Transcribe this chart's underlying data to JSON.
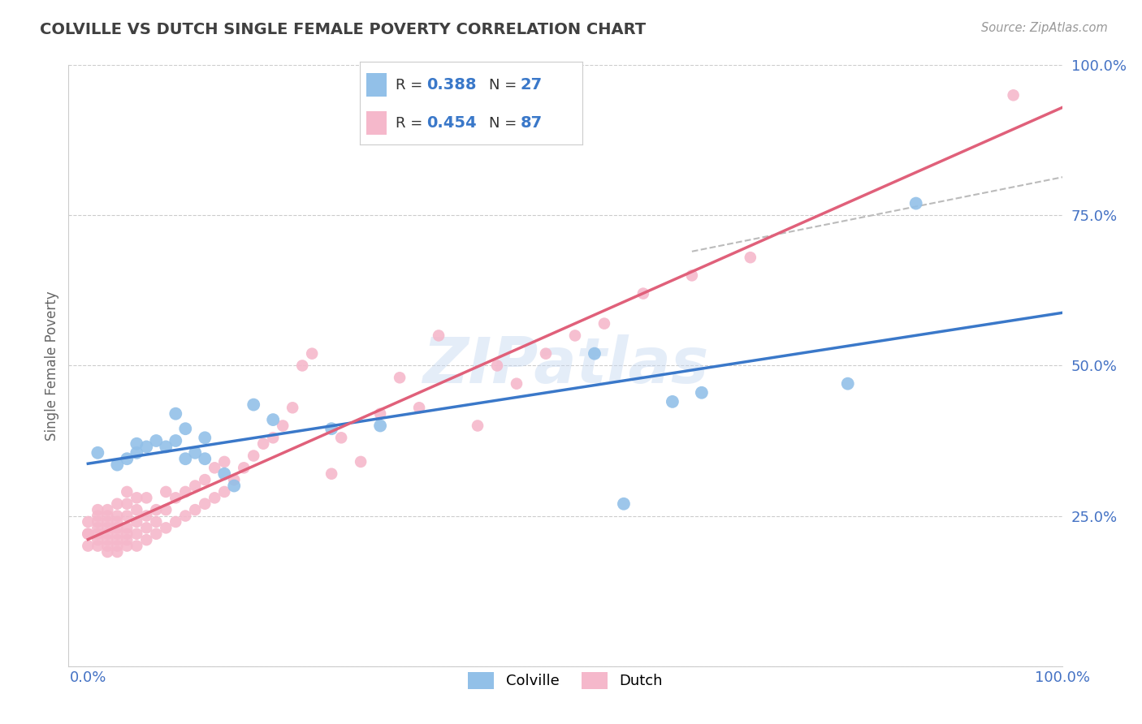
{
  "title": "COLVILLE VS DUTCH SINGLE FEMALE POVERTY CORRELATION CHART",
  "source": "Source: ZipAtlas.com",
  "ylabel": "Single Female Poverty",
  "watermark": "ZIPatlas",
  "colville_R": 0.388,
  "colville_N": 27,
  "dutch_R": 0.454,
  "dutch_N": 87,
  "colville_color": "#92c0e8",
  "dutch_color": "#f5b8cb",
  "colville_line_color": "#3a78c9",
  "dutch_line_color": "#e0607a",
  "diagonal_color": "#bbbbbb",
  "background_color": "#ffffff",
  "grid_color": "#cccccc",
  "axis_label_color": "#4472c4",
  "title_color": "#404040",
  "colville_x": [
    0.01,
    0.03,
    0.04,
    0.05,
    0.05,
    0.06,
    0.07,
    0.08,
    0.09,
    0.09,
    0.1,
    0.1,
    0.11,
    0.12,
    0.12,
    0.14,
    0.15,
    0.17,
    0.19,
    0.25,
    0.3,
    0.52,
    0.55,
    0.6,
    0.63,
    0.78,
    0.85
  ],
  "colville_y": [
    0.355,
    0.335,
    0.345,
    0.355,
    0.37,
    0.365,
    0.375,
    0.365,
    0.42,
    0.375,
    0.345,
    0.395,
    0.355,
    0.38,
    0.345,
    0.32,
    0.3,
    0.435,
    0.41,
    0.395,
    0.4,
    0.52,
    0.27,
    0.44,
    0.455,
    0.47,
    0.77
  ],
  "dutch_x": [
    0.0,
    0.0,
    0.0,
    0.0,
    0.01,
    0.01,
    0.01,
    0.01,
    0.01,
    0.01,
    0.01,
    0.02,
    0.02,
    0.02,
    0.02,
    0.02,
    0.02,
    0.02,
    0.02,
    0.03,
    0.03,
    0.03,
    0.03,
    0.03,
    0.03,
    0.03,
    0.03,
    0.04,
    0.04,
    0.04,
    0.04,
    0.04,
    0.04,
    0.04,
    0.05,
    0.05,
    0.05,
    0.05,
    0.05,
    0.06,
    0.06,
    0.06,
    0.06,
    0.07,
    0.07,
    0.07,
    0.08,
    0.08,
    0.08,
    0.09,
    0.09,
    0.1,
    0.1,
    0.11,
    0.11,
    0.12,
    0.12,
    0.13,
    0.13,
    0.14,
    0.14,
    0.15,
    0.16,
    0.17,
    0.18,
    0.19,
    0.2,
    0.21,
    0.22,
    0.23,
    0.25,
    0.26,
    0.28,
    0.3,
    0.32,
    0.34,
    0.36,
    0.4,
    0.42,
    0.44,
    0.47,
    0.5,
    0.53,
    0.57,
    0.62,
    0.68,
    0.95
  ],
  "dutch_y": [
    0.2,
    0.22,
    0.22,
    0.24,
    0.2,
    0.21,
    0.22,
    0.23,
    0.24,
    0.25,
    0.26,
    0.19,
    0.2,
    0.21,
    0.22,
    0.23,
    0.24,
    0.25,
    0.26,
    0.19,
    0.2,
    0.21,
    0.22,
    0.23,
    0.24,
    0.25,
    0.27,
    0.2,
    0.21,
    0.22,
    0.23,
    0.25,
    0.27,
    0.29,
    0.2,
    0.22,
    0.24,
    0.26,
    0.28,
    0.21,
    0.23,
    0.25,
    0.28,
    0.22,
    0.24,
    0.26,
    0.23,
    0.26,
    0.29,
    0.24,
    0.28,
    0.25,
    0.29,
    0.26,
    0.3,
    0.27,
    0.31,
    0.28,
    0.33,
    0.29,
    0.34,
    0.31,
    0.33,
    0.35,
    0.37,
    0.38,
    0.4,
    0.43,
    0.5,
    0.52,
    0.32,
    0.38,
    0.34,
    0.42,
    0.48,
    0.43,
    0.55,
    0.4,
    0.5,
    0.47,
    0.52,
    0.55,
    0.57,
    0.62,
    0.65,
    0.68,
    0.95
  ],
  "xlim": [
    -0.02,
    1.0
  ],
  "ylim": [
    0.0,
    1.0
  ],
  "yticks": [
    0.0,
    0.25,
    0.5,
    0.75,
    1.0
  ],
  "xticks": [
    0.0,
    1.0
  ]
}
